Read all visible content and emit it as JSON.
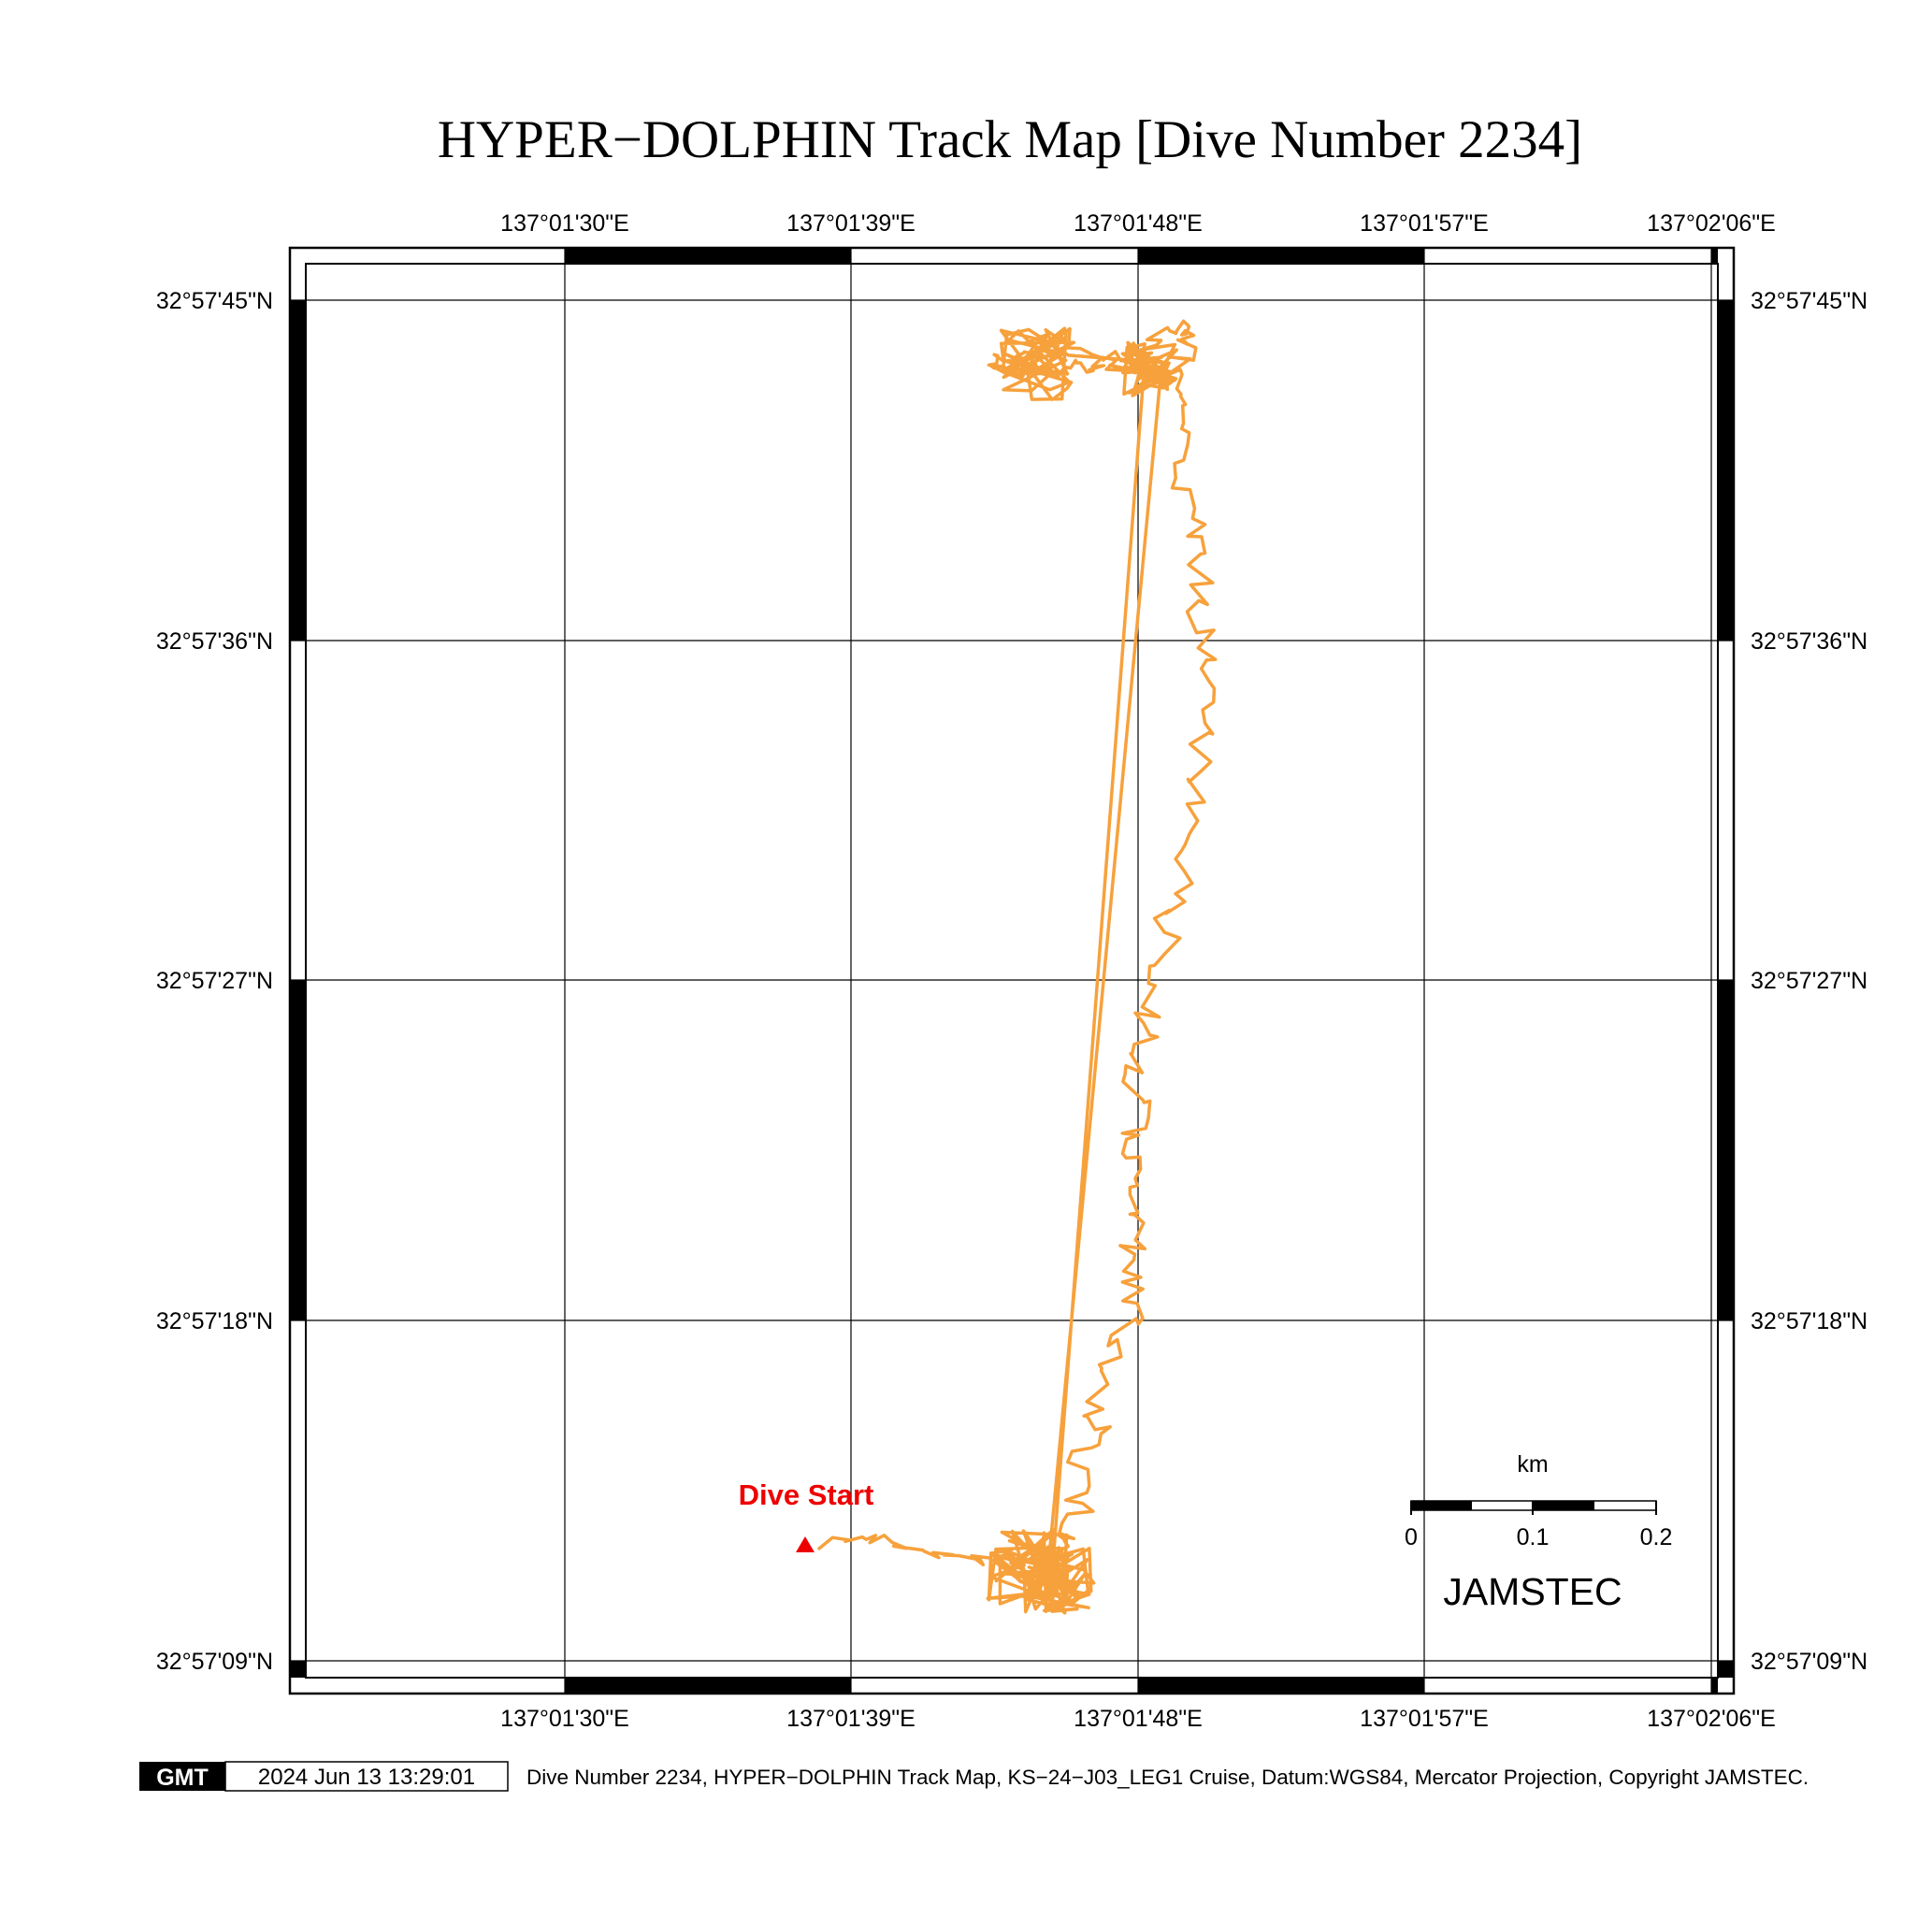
{
  "title": "HYPER−DOLPHIN Track Map [Dive Number 2234]",
  "longitude_labels": [
    "137°01'30\"E",
    "137°01'39\"E",
    "137°01'48\"E",
    "137°01'57\"E",
    "137°02'06\"E"
  ],
  "latitude_labels": [
    "32°57'45\"N",
    "32°57'36\"N",
    "32°57'27\"N",
    "32°57'18\"N",
    "32°57'09\"N"
  ],
  "annotation": {
    "dive_start_label": "Dive Start",
    "dive_start_color": "#ee0000"
  },
  "track": {
    "color": "#f7a13c"
  },
  "scale_bar": {
    "unit": "km",
    "ticks": [
      "0",
      "0.1",
      "0.2"
    ]
  },
  "organization": "JAMSTEC",
  "footer": {
    "logo_text": "GMT",
    "timestamp": "2024 Jun 13 13:29:01",
    "caption": "Dive Number 2234, HYPER−DOLPHIN Track Map, KS−24−J03_LEG1 Cruise, Datum:WGS84, Mercator Projection, Copyright JAMSTEC."
  }
}
